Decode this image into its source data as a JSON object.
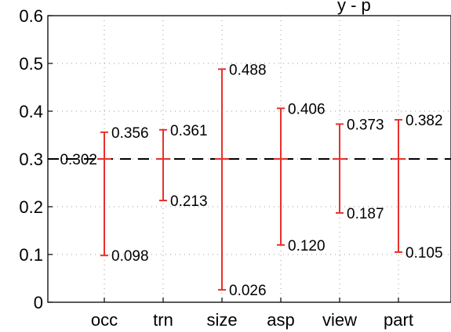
{
  "chart_data": {
    "type": "errorbar",
    "title_fragment": "y - p",
    "categories": [
      "occ",
      "trn",
      "size",
      "asp",
      "view",
      "part"
    ],
    "center": 0.3,
    "center_label": "0.302",
    "upper": [
      0.356,
      0.361,
      0.488,
      0.406,
      0.373,
      0.382
    ],
    "lower": [
      0.098,
      0.213,
      0.026,
      0.12,
      0.187,
      0.105
    ],
    "upper_labels": [
      "0.356",
      "0.361",
      "0.488",
      "0.406",
      "0.373",
      "0.382"
    ],
    "lower_labels": [
      "0.098",
      "0.213",
      "0.026",
      "0.120",
      "0.187",
      "0.105"
    ],
    "ylim": [
      0,
      0.6
    ],
    "yticks": [
      0,
      0.1,
      0.2,
      0.3,
      0.4,
      0.5,
      0.6
    ],
    "ytick_labels": [
      "0",
      "0.1",
      "0.2",
      "0.3",
      "0.4",
      "0.5",
      "0.6"
    ],
    "grid": true,
    "colors": {
      "errorbar": "#e8302a",
      "reference_line": "#000000",
      "grid": "#9a9a9a",
      "axis": "#000000"
    }
  }
}
